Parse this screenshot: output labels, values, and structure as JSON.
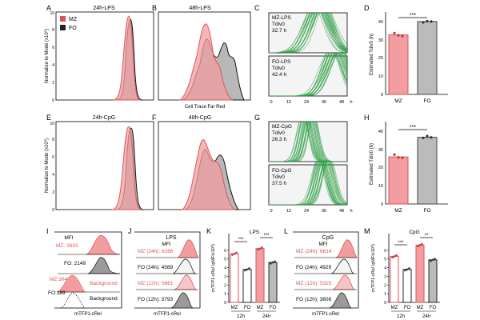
{
  "colors": {
    "mz": "#e0525a",
    "mz_fill": "#f29ea0",
    "fo": "#222222",
    "fo_fill": "#9a9a9a",
    "green": "#2e9e44"
  },
  "panel_letters": [
    "A",
    "B",
    "C",
    "D",
    "E",
    "F",
    "G",
    "H",
    "I",
    "J",
    "K",
    "L",
    "M"
  ],
  "titles": {
    "A": "24h-LPS",
    "B": "48h-LPS",
    "E": "24h-CpG",
    "F": "48h-CpG"
  },
  "legend": {
    "mz": "MZ",
    "fo": "FO"
  },
  "axes": {
    "hist_y_top": "Normalize to Mode (x10",
    "hist_y_bot": "Normalize to Mode (x10",
    "ctfr": "Cell Trace Far Red",
    "tdivo_y": "Estimated Tdiv0 (h)",
    "ctfr_x_label": "Cell Trace Far Red",
    "mtfp": "mTFP1-cRel",
    "k_y": "mTFP1-cRel (gMFIx10",
    "m_y": "mTFP1-cRel (gMFIx10",
    "h_unit": "h"
  },
  "ticks": {
    "hist_y": [
      "0",
      "2",
      "4",
      "6",
      "8",
      "10"
    ],
    "c_x": [
      "0",
      "12",
      "24",
      "36",
      "48"
    ],
    "bar_y": [
      "0",
      "10",
      "20",
      "30",
      "40"
    ],
    "k_y": [
      "0",
      "1",
      "2",
      "3",
      "4",
      "5",
      "6"
    ]
  },
  "panel_c": {
    "mz_label": "MZ-LPS",
    "mz_tdiv": "Tdiv0",
    "mz_value": "32.7 h",
    "fo_label": "FO-LPS",
    "fo_tdiv": "Tdiv0",
    "fo_value": "42.4 h"
  },
  "panel_g": {
    "mz_label": "MZ-CpG",
    "mz_tdiv": "Tdiv0",
    "mz_value": "26.3 h",
    "fo_label": "FO-CpG",
    "fo_tdiv": "Tdiv0",
    "fo_value": "37.5 h"
  },
  "panel_i": {
    "mfi": "MFI",
    "mz": "MZ: 2633",
    "fo": "FO: 2149",
    "mz_bg": "MZ:304",
    "fo_bg": "FO:189",
    "bg1": "Background",
    "bg2": "Background"
  },
  "panel_j": {
    "title": "LPS",
    "mfi": "MFI",
    "rows": [
      "MZ (24h): 6266",
      "FO (24h): 4589",
      "MZ (12h): 5661",
      "FO (12h): 3793"
    ]
  },
  "panel_l": {
    "title": "CpG",
    "mfi": "MFI",
    "rows": [
      "MZ (24h): 6614",
      "FO (24h): 4929",
      "MZ (12h): 5325",
      "FO (12h): 3808"
    ]
  },
  "panel_k": {
    "title": "LPS",
    "groups": [
      "MZ",
      "FO",
      "MZ",
      "FO"
    ],
    "times": [
      "12h",
      "24h"
    ],
    "sig": [
      "***",
      "***"
    ]
  },
  "panel_m": {
    "title": "CpG",
    "groups": [
      "MZ",
      "FO",
      "MZ",
      "FO"
    ],
    "times": [
      "12h",
      "24h"
    ],
    "sig": [
      "***",
      "**"
    ]
  },
  "chart_data": [
    {
      "panel": "D",
      "type": "bar",
      "title": "",
      "categories": [
        "MZ",
        "FO"
      ],
      "values": [
        33.5,
        41
      ],
      "ylabel": "Estimated Tdiv0 (h)",
      "ylim": [
        0,
        45
      ],
      "points": [
        [
          34.5,
          33.2,
          32.8
        ],
        [
          40.5,
          41.2,
          41.0
        ]
      ],
      "significance": "***"
    },
    {
      "panel": "H",
      "type": "bar",
      "title": "",
      "categories": [
        "MZ",
        "FO"
      ],
      "values": [
        26.5,
        37.5
      ],
      "ylabel": "Estimated Tdiv0 (h)",
      "ylim": [
        0,
        45
      ],
      "points": [
        [
          27.8,
          26.2,
          26.0
        ],
        [
          37.2,
          38.2,
          37.5
        ]
      ],
      "significance": "***"
    },
    {
      "panel": "K",
      "type": "bar",
      "title": "LPS",
      "categories": [
        "MZ 12h",
        "FO 12h",
        "MZ 24h",
        "FO 24h"
      ],
      "values": [
        5.6,
        3.8,
        6.2,
        4.6
      ],
      "ylabel": "mTFP1-cRel (gMFIx10^3)",
      "ylim": [
        0,
        7
      ],
      "significance": [
        "***",
        "***"
      ]
    },
    {
      "panel": "M",
      "type": "bar",
      "title": "CpG",
      "categories": [
        "MZ 12h",
        "FO 12h",
        "MZ 24h",
        "FO 24h"
      ],
      "values": [
        5.3,
        3.8,
        6.6,
        4.9
      ],
      "ylabel": "mTFP1-cRel (gMFIx10^3)",
      "ylim": [
        0,
        7
      ],
      "significance": [
        "***",
        "**"
      ]
    }
  ]
}
